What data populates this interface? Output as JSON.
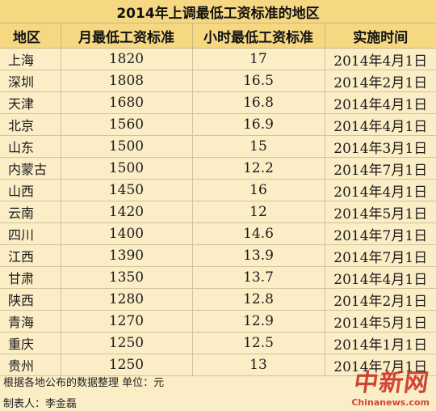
{
  "title": "2014年上调最低工资标准的地区",
  "headers": [
    "地区",
    "月最低工资标准",
    "小时最低工资标准",
    "实施时间"
  ],
  "rows": [
    {
      "region": "上海",
      "monthly": "1820",
      "hourly": "17",
      "date": "2014年4月1日"
    },
    {
      "region": "深圳",
      "monthly": "1808",
      "hourly": "16.5",
      "date": "2014年2月1日"
    },
    {
      "region": "天津",
      "monthly": "1680",
      "hourly": "16.8",
      "date": "2014年4月1日"
    },
    {
      "region": "北京",
      "monthly": "1560",
      "hourly": "16.9",
      "date": "2014年4月1日"
    },
    {
      "region": "山东",
      "monthly": "1500",
      "hourly": "15",
      "date": "2014年3月1日"
    },
    {
      "region": "内蒙古",
      "monthly": "1500",
      "hourly": "12.2",
      "date": "2014年7月1日"
    },
    {
      "region": "山西",
      "monthly": "1450",
      "hourly": "16",
      "date": "2014年4月1日"
    },
    {
      "region": "云南",
      "monthly": "1420",
      "hourly": "12",
      "date": "2014年5月1日"
    },
    {
      "region": "四川",
      "monthly": "1400",
      "hourly": "14.6",
      "date": "2014年7月1日"
    },
    {
      "region": "江西",
      "monthly": "1390",
      "hourly": "13.9",
      "date": "2014年7月1日"
    },
    {
      "region": "甘肃",
      "monthly": "1350",
      "hourly": "13.7",
      "date": "2014年4月1日"
    },
    {
      "region": "陕西",
      "monthly": "1280",
      "hourly": "12.8",
      "date": "2014年2月1日"
    },
    {
      "region": "青海",
      "monthly": "1270",
      "hourly": "12.9",
      "date": "2014年5月1日"
    },
    {
      "region": "重庆",
      "monthly": "1250",
      "hourly": "12.5",
      "date": "2014年1月1日"
    },
    {
      "region": "贵州",
      "monthly": "1250",
      "hourly": "13",
      "date": "2014年7月1日"
    }
  ],
  "footer": {
    "note": "根据各地公布的数据整理  单位：元",
    "maker": "制表人：李金磊"
  },
  "watermark": {
    "logo": "中新网",
    "url": "Chinanews.com"
  },
  "colors": {
    "header_bg": "#f6d883",
    "body_bg": "#fbeec6",
    "watermark": "#c8281c"
  }
}
